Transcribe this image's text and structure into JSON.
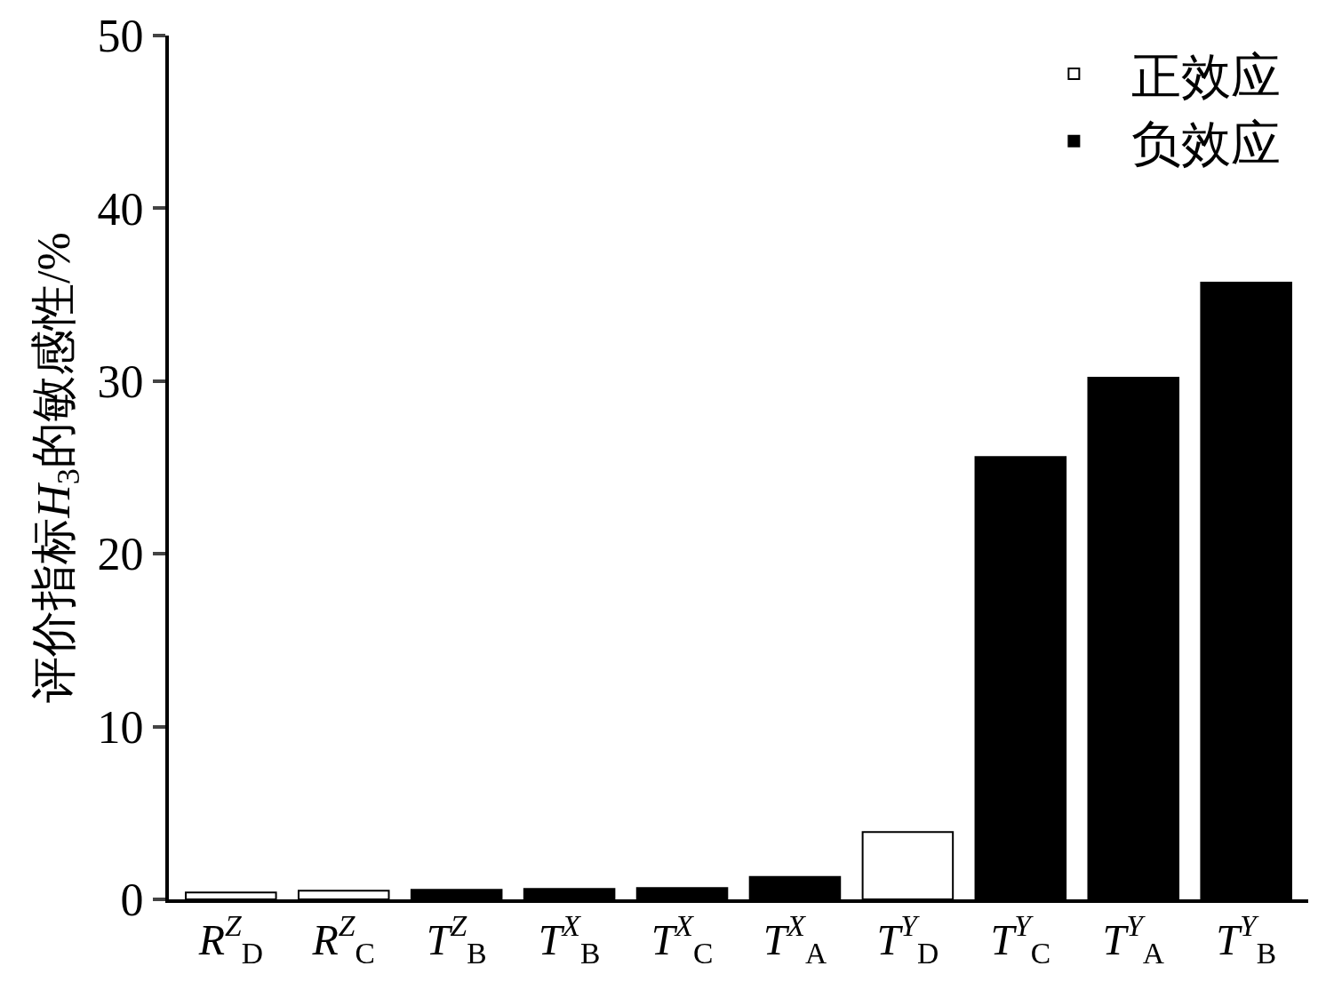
{
  "chart_data": {
    "type": "bar",
    "ylabel": "评价指标H$_{3}$的敏感性/%",
    "categories": [
      "R$^{Z}$$_{D}$",
      "R$^{Z}$$_{C}$",
      "T$^{Z}$$_{B}$",
      "T$^{X}$$_{B}$",
      "T$^{X}$$_{C}$",
      "T$^{X}$$_{A}$",
      "T$^{Y}$$_{D}$",
      "T$^{Y}$$_{C}$",
      "T$^{Y}$$_{A}$",
      "T$^{Y}$$_{B}$"
    ],
    "series": [
      {
        "name": "正效应",
        "color": "#ffffff",
        "values": [
          0.4,
          0.5,
          null,
          null,
          null,
          null,
          3.9,
          null,
          null,
          null
        ]
      },
      {
        "name": "负效应",
        "color": "#000000",
        "values": [
          null,
          null,
          0.55,
          0.6,
          0.65,
          1.3,
          null,
          25.6,
          30.2,
          35.7
        ]
      }
    ],
    "ylim": [
      0,
      50
    ],
    "yticks": [
      0,
      10,
      20,
      30,
      40,
      50
    ],
    "grid": false,
    "legend": "top right"
  }
}
